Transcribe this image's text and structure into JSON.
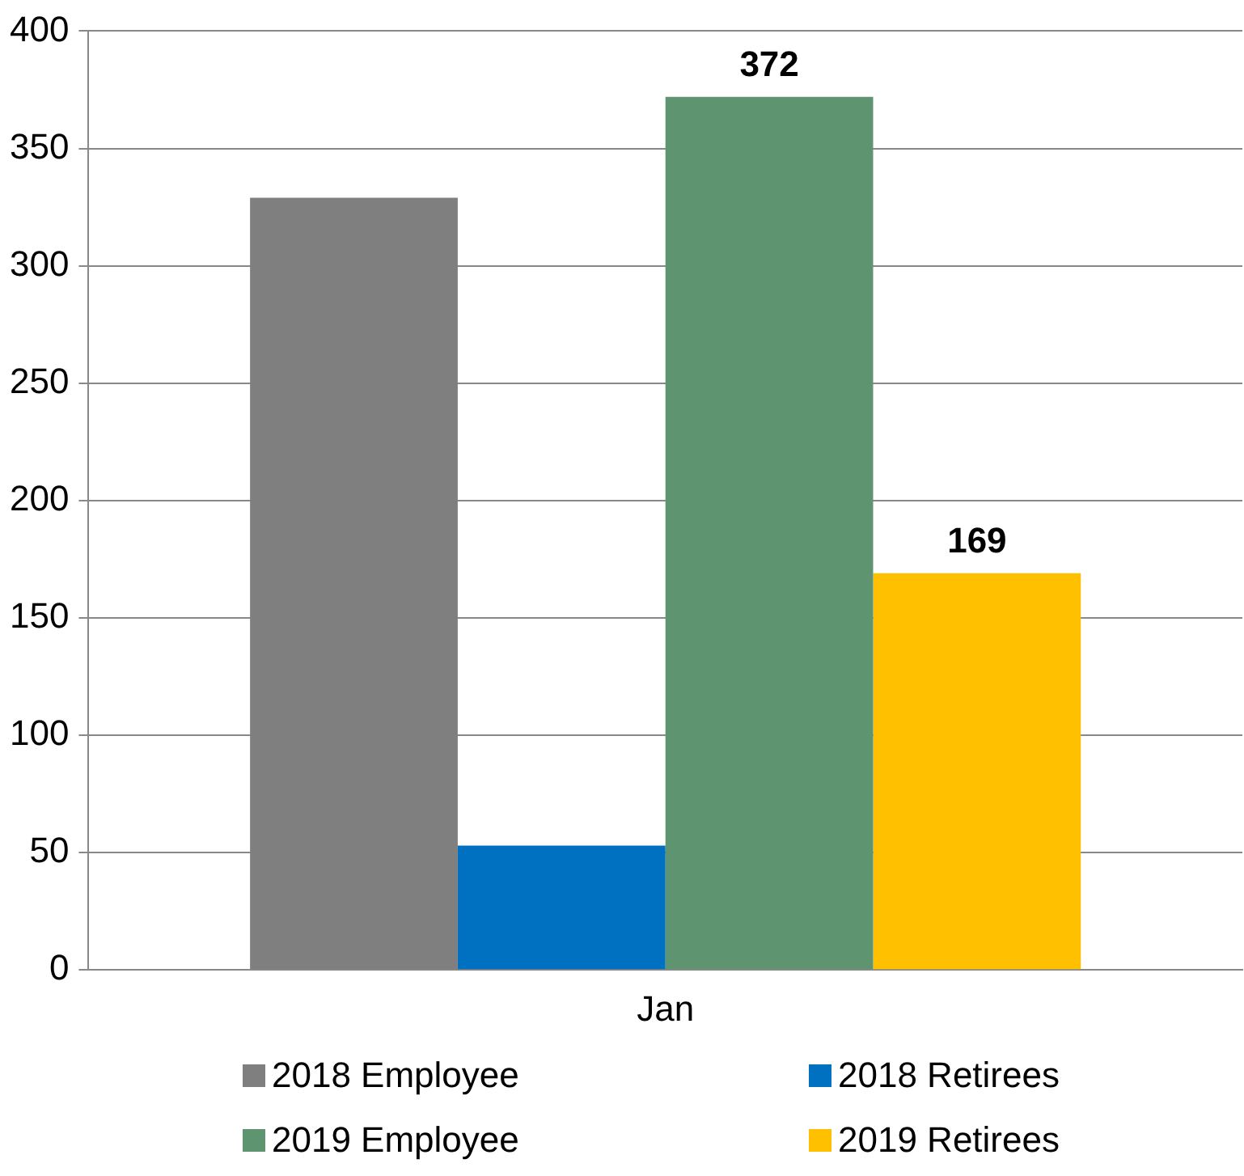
{
  "chart_data": {
    "type": "bar",
    "categories": [
      "Jan"
    ],
    "series": [
      {
        "name": "2018 Employee",
        "color": "#7f7f7f",
        "values": [
          329
        ],
        "value_labels": [
          null
        ]
      },
      {
        "name": "2018 Retirees",
        "color": "#0070c0",
        "values": [
          53
        ],
        "value_labels": [
          null
        ]
      },
      {
        "name": "2019 Employee",
        "color": "#5f9470",
        "values": [
          372
        ],
        "value_labels": [
          "372"
        ]
      },
      {
        "name": "2019 Retirees",
        "color": "#ffc000",
        "values": [
          169
        ],
        "value_labels": [
          "169"
        ]
      }
    ],
    "ylim": [
      0,
      400
    ],
    "yticks": [
      0,
      50,
      100,
      150,
      200,
      250,
      300,
      350,
      400
    ],
    "grid": "y",
    "legend": "bottom"
  }
}
